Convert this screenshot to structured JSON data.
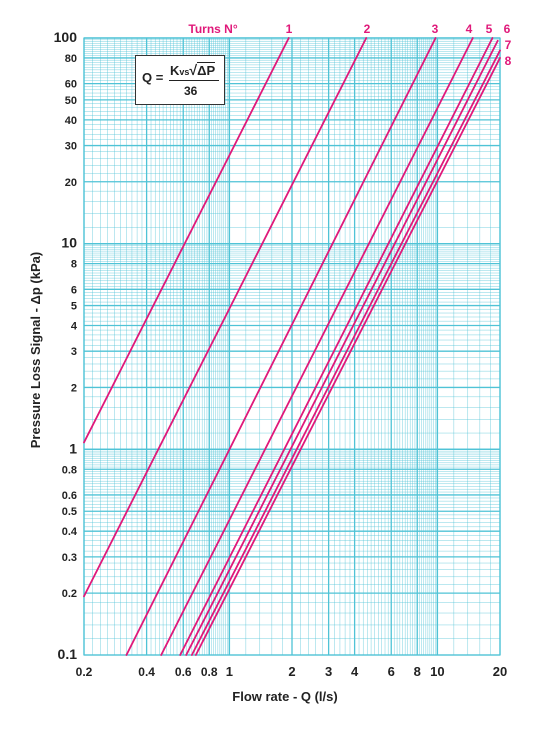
{
  "chart_data": {
    "type": "line",
    "xscale": "log",
    "yscale": "log",
    "xlim": [
      0.2,
      20
    ],
    "ylim": [
      0.1,
      100
    ],
    "xlabel": "Flow rate - Q (l/s)",
    "ylabel": "Pressure Loss Signal  - Δp (kPa)",
    "legend_title": "Turns N°",
    "grid": true,
    "grid_color": "#4fc3d6",
    "line_color": "#e0197a",
    "x_ticks": [
      "0.2",
      "0.4",
      "0.6",
      "0.8",
      "1",
      "2",
      "3",
      "4",
      "6",
      "8",
      "10",
      "20"
    ],
    "x_tick_values": [
      0.2,
      0.4,
      0.6,
      0.8,
      1,
      2,
      3,
      4,
      6,
      8,
      10,
      20
    ],
    "y_ticks": [
      "100",
      "80",
      "60",
      "50",
      "40",
      "30",
      "20",
      "10",
      "8",
      "6",
      "5",
      "4",
      "3",
      "2",
      "1",
      "0.8",
      "0.6",
      "0.5",
      "0.4",
      "0.3",
      "0.2",
      "0.1"
    ],
    "y_tick_values": [
      100,
      80,
      60,
      50,
      40,
      30,
      20,
      10,
      8,
      6,
      5,
      4,
      3,
      2,
      1,
      0.8,
      0.6,
      0.5,
      0.4,
      0.3,
      0.2,
      0.1
    ],
    "series": [
      {
        "name": "1",
        "points": [
          [
            0.2,
            1.08
          ],
          [
            1.93,
            100
          ]
        ]
      },
      {
        "name": "2",
        "points": [
          [
            0.2,
            0.193
          ],
          [
            4.55,
            100
          ]
        ]
      },
      {
        "name": "3",
        "points": [
          [
            0.32,
            0.1
          ],
          [
            9.8,
            100
          ]
        ]
      },
      {
        "name": "4",
        "points": [
          [
            0.47,
            0.1
          ],
          [
            14.8,
            100
          ]
        ]
      },
      {
        "name": "5",
        "points": [
          [
            0.58,
            0.1
          ],
          [
            18.4,
            100
          ]
        ]
      },
      {
        "name": "6",
        "points": [
          [
            0.62,
            0.1
          ],
          [
            19.5,
            97
          ]
        ]
      },
      {
        "name": "7",
        "points": [
          [
            0.66,
            0.1
          ],
          [
            20,
            87
          ]
        ]
      },
      {
        "name": "8",
        "points": [
          [
            0.69,
            0.1
          ],
          [
            20,
            80
          ]
        ]
      }
    ],
    "formula": {
      "lhs": "Q =",
      "numerator_k": "K",
      "numerator_sub": "vs",
      "numerator_sqrt": "ΔP",
      "denominator": "36"
    }
  }
}
